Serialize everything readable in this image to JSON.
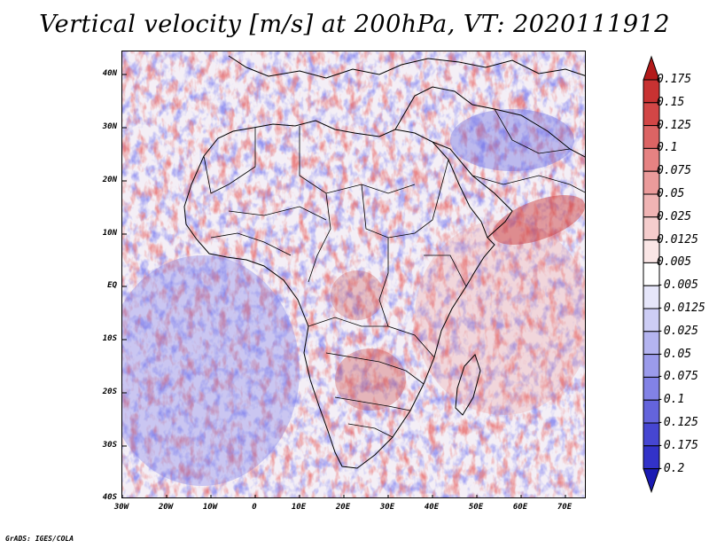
{
  "title": "Vertical velocity [m/s] at 200hPa, VT: 2020111912",
  "credit": "GrADS: IGES/COLA",
  "map": {
    "region": "Africa",
    "lat_range": [
      -40,
      45
    ],
    "lon_range": [
      -30,
      75
    ],
    "lat_labels": [
      "40N",
      "30N",
      "20N",
      "10N",
      "EQ",
      "10S",
      "20S",
      "30S",
      "40S"
    ],
    "lon_labels": [
      "30W",
      "20W",
      "10W",
      "0",
      "10E",
      "20E",
      "30E",
      "40E",
      "50E",
      "60E",
      "70E"
    ]
  },
  "colorbar": {
    "labels": [
      "0.175",
      "0.15",
      "0.125",
      "0.1",
      "0.075",
      "0.05",
      "0.025",
      "0.0125",
      "0.005",
      "-0.005",
      "-0.0125",
      "-0.025",
      "-0.05",
      "-0.075",
      "-0.1",
      "-0.125",
      "-0.175",
      "-0.2"
    ],
    "colors": [
      "#b31a1a",
      "#c83232",
      "#d24646",
      "#dc6464",
      "#e68282",
      "#eb9b9b",
      "#f0b4b4",
      "#f5cdcd",
      "#fae6e6",
      "#ffffff",
      "#e6e6fa",
      "#cdcdf5",
      "#b4b4f0",
      "#9b9beb",
      "#8282e6",
      "#6464dc",
      "#4646d2",
      "#3232c8",
      "#1a1ab3"
    ]
  }
}
